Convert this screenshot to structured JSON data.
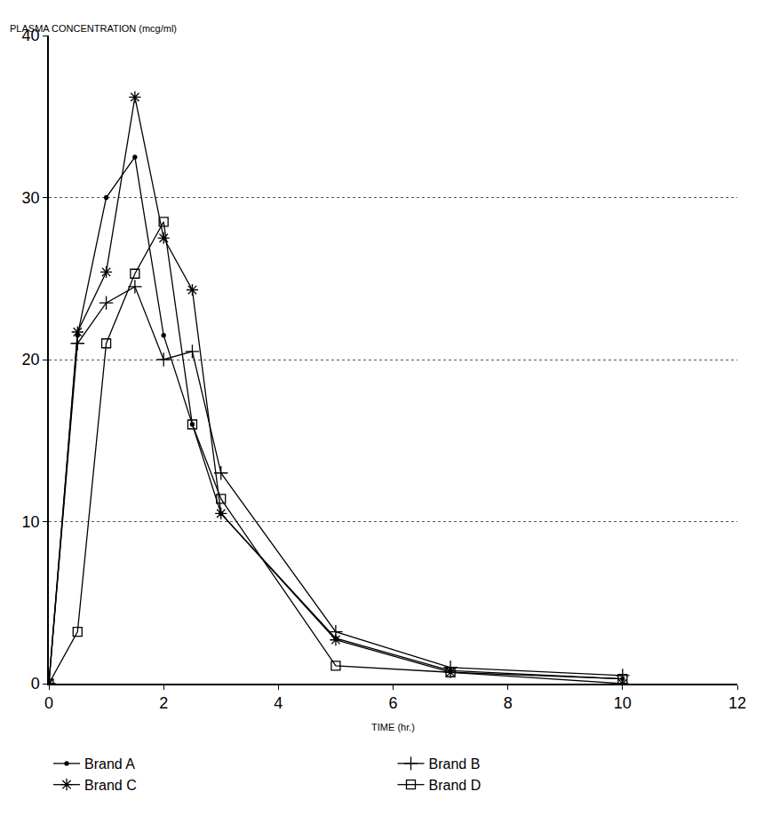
{
  "chart_data": {
    "type": "line",
    "y_label": "PLASMA CONCENTRATION (mcg/ml)",
    "x_label": "TIME (hr.)",
    "x": [
      0,
      0.5,
      1,
      1.5,
      2,
      2.5,
      3,
      5,
      7,
      10
    ],
    "series": [
      {
        "name": "Brand A",
        "color": "#000000",
        "marker": "dot",
        "line_style": "solid",
        "values": [
          0,
          21.5,
          30,
          32.5,
          21.5,
          16,
          10.5,
          2.8,
          0.8,
          0.3
        ]
      },
      {
        "name": "Brand B",
        "color": "#000000",
        "marker": "plus",
        "line_style": "solid",
        "values": [
          0,
          21,
          23.5,
          24.5,
          20,
          20.5,
          13,
          3.2,
          1,
          0.5
        ]
      },
      {
        "name": "Brand C",
        "color": "#000000",
        "marker": "asterisk",
        "line_style": "solid",
        "values": [
          0,
          21.7,
          25.4,
          36.2,
          27.5,
          24.3,
          10.5,
          2.7,
          0.7,
          0
        ]
      },
      {
        "name": "Brand D",
        "color": "#000000",
        "marker": "square",
        "line_style": "solid",
        "values": [
          0,
          3.2,
          21,
          25.3,
          28.5,
          16,
          11.4,
          1.1,
          0.7,
          0.3
        ]
      }
    ],
    "xlim": [
      0,
      12
    ],
    "xticks": [
      0,
      2,
      4,
      6,
      8,
      10,
      12
    ],
    "ylim": [
      0,
      40
    ],
    "yticks": [
      0,
      10,
      20,
      30,
      40
    ],
    "grid": true,
    "legend": "bottom"
  }
}
